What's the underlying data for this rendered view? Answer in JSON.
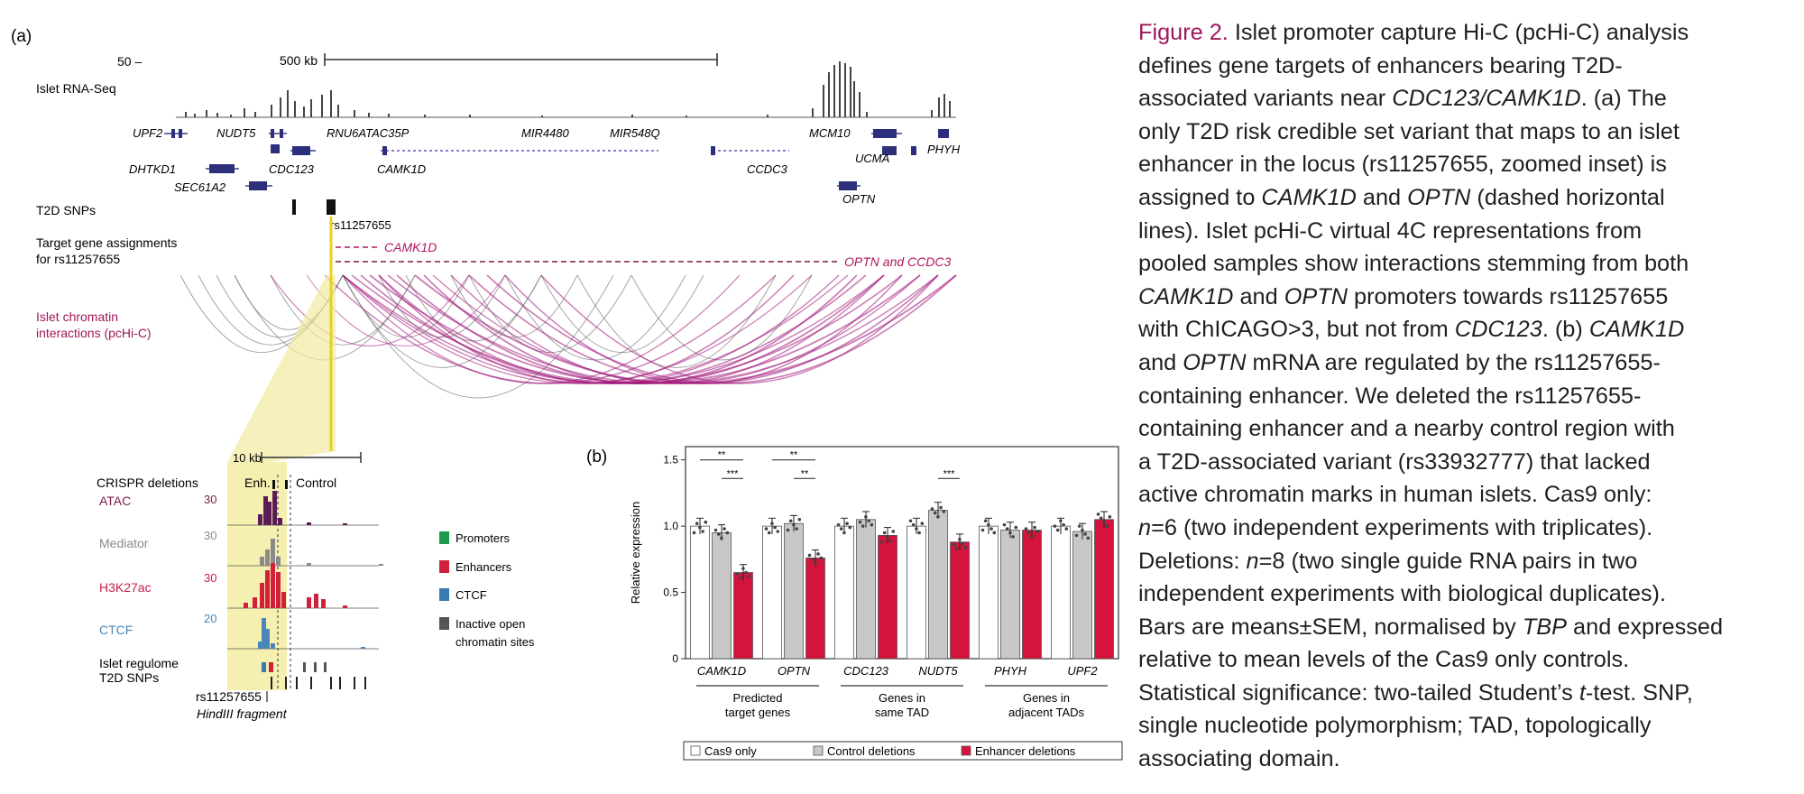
{
  "panel_a": {
    "label": "(a)",
    "scale_left": "50 –",
    "scale_bar": "500 kb",
    "track_rnaseq": "Islet RNA-Seq",
    "genes_row1": [
      "UPF2",
      "NUDT5",
      "RNU6ATAC35P",
      "MIR4480",
      "MIR548Q",
      "MCM10"
    ],
    "genes_row2": [
      "DHTKD1",
      "CDC123",
      "CAMK1D",
      "CCDC3",
      "UCMA",
      "PHYH"
    ],
    "genes_row3": [
      "SEC61A2",
      "OPTN"
    ],
    "track_snps": "T2D SNPs",
    "snp_label": "rs11257655",
    "assign_label_1": "Target gene assignments",
    "assign_label_2": "for rs11257655",
    "assign_camk1d": "CAMK1D",
    "assign_optn": "OPTN and CCDC3",
    "interact_label_1": "Islet chromatin",
    "interact_label_2": "interactions (pcHi-C)",
    "inset_scale": "10 kb",
    "crispr_label": "CRISPR deletions",
    "enh_label": "Enh.",
    "control_label": "Control",
    "tracks": [
      {
        "name": "ATAC",
        "max": "30",
        "color": "#7a1f4a"
      },
      {
        "name": "Mediator",
        "max": "30",
        "color": "#8a8a8a"
      },
      {
        "name": "H3K27ac",
        "max": "30",
        "color": "#c41e4a"
      },
      {
        "name": "CTCF",
        "max": "20",
        "color": "#4a86b8"
      }
    ],
    "regulome_1": "Islet regulome",
    "regulome_2": "T2D SNPs",
    "inset_snp": "rs11257655",
    "hindiii": "HindIII fragment",
    "legend": [
      {
        "label": "Promoters",
        "color": "#1f9a4a"
      },
      {
        "label": "Enhancers",
        "color": "#d0203a"
      },
      {
        "label": "CTCF",
        "color": "#3b79b5"
      },
      {
        "label": "Inactive open",
        "color": "#555555"
      },
      {
        "label": "chromatin sites",
        "color": ""
      }
    ]
  },
  "panel_b": {
    "label": "(b)",
    "sig_stars": [
      "**",
      "***",
      "**",
      "**",
      "***"
    ]
  },
  "chart_data": {
    "type": "bar",
    "ylabel": "Relative expression",
    "ylim": [
      0,
      1.6
    ],
    "yticks": [
      "0",
      "0.5",
      "1.0",
      "1.5"
    ],
    "categories": [
      "CAMK1D",
      "OPTN",
      "CDC123",
      "NUDT5",
      "PHYH",
      "UPF2"
    ],
    "groups": [
      {
        "name": "Predicted target genes",
        "name_lines": [
          "Predicted",
          "target genes"
        ],
        "categories": [
          "CAMK1D",
          "OPTN"
        ]
      },
      {
        "name": "Genes in same TAD",
        "name_lines": [
          "Genes in",
          "same TAD"
        ],
        "categories": [
          "CDC123",
          "NUDT5"
        ]
      },
      {
        "name": "Genes in adjacent TADs",
        "name_lines": [
          "Genes in",
          "adjacent TADs"
        ],
        "categories": [
          "PHYH",
          "UPF2"
        ]
      }
    ],
    "series": [
      {
        "name": "Cas9 only",
        "color": "#ffffff",
        "values": [
          1.0,
          1.0,
          1.0,
          1.0,
          1.0,
          1.0
        ]
      },
      {
        "name": "Control deletions",
        "color": "#c8c8c8",
        "values": [
          0.95,
          1.02,
          1.05,
          1.12,
          0.97,
          0.96
        ]
      },
      {
        "name": "Enhancer deletions",
        "color": "#d4143c",
        "values": [
          0.65,
          0.76,
          0.93,
          0.88,
          0.97,
          1.05
        ]
      }
    ],
    "grid": false,
    "legend_position": "bottom"
  },
  "caption": {
    "title": "Figure 2.",
    "lines": [
      [
        {
          "t": " Islet promoter capture Hi-C (pcHi-C) analysis"
        }
      ],
      [
        {
          "t": "defines gene targets of enhancers bearing T2D-"
        }
      ],
      [
        {
          "t": "associated variants near "
        },
        {
          "t": "CDC123/CAMK1D",
          "i": true
        },
        {
          "t": ". (a) The"
        }
      ],
      [
        {
          "t": "only T2D risk credible set variant that maps to an islet"
        }
      ],
      [
        {
          "t": "enhancer in the locus (rs11257655, zoomed inset) is"
        }
      ],
      [
        {
          "t": "assigned to "
        },
        {
          "t": "CAMK1D",
          "i": true
        },
        {
          "t": " and "
        },
        {
          "t": "OPTN",
          "i": true
        },
        {
          "t": " (dashed horizontal"
        }
      ],
      [
        {
          "t": "lines). Islet pcHi-C virtual 4C representations from"
        }
      ],
      [
        {
          "t": "pooled samples show interactions stemming from both"
        }
      ],
      [
        {
          "t": "CAMK1D",
          "i": true
        },
        {
          "t": " and "
        },
        {
          "t": "OPTN",
          "i": true
        },
        {
          "t": " promoters towards rs11257655"
        }
      ],
      [
        {
          "t": "with ChICAGO>3, but not from "
        },
        {
          "t": "CDC123",
          "i": true
        },
        {
          "t": ". (b) "
        },
        {
          "t": "CAMK1D",
          "i": true
        }
      ],
      [
        {
          "t": "and "
        },
        {
          "t": "OPTN",
          "i": true
        },
        {
          "t": " mRNA are regulated by the rs11257655-"
        }
      ],
      [
        {
          "t": "containing enhancer. We deleted the rs11257655-"
        }
      ],
      [
        {
          "t": "containing enhancer and a nearby control region with"
        }
      ],
      [
        {
          "t": "a T2D-associated variant (rs33932777) that lacked"
        }
      ],
      [
        {
          "t": "active chromatin marks in human islets. Cas9 only:"
        }
      ],
      [
        {
          "t": "n",
          "i": true
        },
        {
          "t": "=6 (two independent experiments with triplicates)."
        }
      ],
      [
        {
          "t": "Deletions: "
        },
        {
          "t": "n",
          "i": true
        },
        {
          "t": "=8 (two single guide RNA pairs in two"
        }
      ],
      [
        {
          "t": "independent experiments with biological duplicates)."
        }
      ],
      [
        {
          "t": "Bars are means±SEM, normalised by "
        },
        {
          "t": "TBP",
          "i": true
        },
        {
          "t": " and expressed"
        }
      ],
      [
        {
          "t": "relative to mean levels of the Cas9 only controls."
        }
      ],
      [
        {
          "t": "Statistical significance: two-tailed Student’s "
        },
        {
          "t": "t",
          "i": true
        },
        {
          "t": "-test. SNP,"
        }
      ],
      [
        {
          "t": "single nucleotide polymorphism; TAD, topologically"
        }
      ],
      [
        {
          "t": "associating domain."
        }
      ]
    ]
  }
}
